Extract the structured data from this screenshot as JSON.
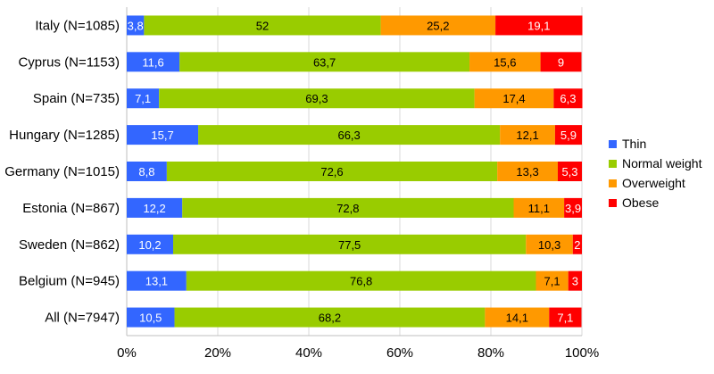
{
  "chart_data": {
    "type": "bar",
    "orientation": "horizontal",
    "stacked": true,
    "categories": [
      "Italy (N=1085)",
      "Cyprus (N=1153)",
      "Spain (N=735)",
      "Hungary (N=1285)",
      "Germany (N=1015)",
      "Estonia (N=867)",
      "Sweden (N=862)",
      "Belgium (N=945)",
      "All (N=7947)"
    ],
    "series": [
      {
        "name": "Thin",
        "color": "#3366ff",
        "values": [
          3.8,
          11.6,
          7.1,
          15.7,
          8.8,
          12.2,
          10.2,
          13.1,
          10.5
        ],
        "labels": [
          "3,8",
          "11,6",
          "7,1",
          "15,7",
          "8,8",
          "12,2",
          "10,2",
          "13,1",
          "10,5"
        ]
      },
      {
        "name": "Normal weight",
        "color": "#99cc00",
        "values": [
          52,
          63.7,
          69.3,
          66.3,
          72.6,
          72.8,
          77.5,
          76.8,
          68.2
        ],
        "labels": [
          "52",
          "63,7",
          "69,3",
          "66,3",
          "72,6",
          "72,8",
          "77,5",
          "76,8",
          "68,2"
        ]
      },
      {
        "name": "Overweight",
        "color": "#ff9900",
        "values": [
          25.2,
          15.6,
          17.4,
          12.1,
          13.3,
          11.1,
          10.3,
          7.1,
          14.1
        ],
        "labels": [
          "25,2",
          "15,6",
          "17,4",
          "12,1",
          "13,3",
          "11,1",
          "10,3",
          "7,1",
          "14,1"
        ]
      },
      {
        "name": "Obese",
        "color": "#ff0000",
        "values": [
          19.1,
          9,
          6.3,
          5.9,
          5.3,
          3.9,
          2,
          3,
          7.1
        ],
        "labels": [
          "19,1",
          "9",
          "6,3",
          "5,9",
          "5,3",
          "3,9",
          "2",
          "3",
          "7,1"
        ]
      }
    ],
    "xticks": [
      "0%",
      "20%",
      "40%",
      "60%",
      "80%",
      "100%"
    ],
    "xlim": [
      0,
      100
    ],
    "grid": "vertical",
    "legend_position": "right",
    "title": "",
    "xlabel": "",
    "ylabel": ""
  }
}
